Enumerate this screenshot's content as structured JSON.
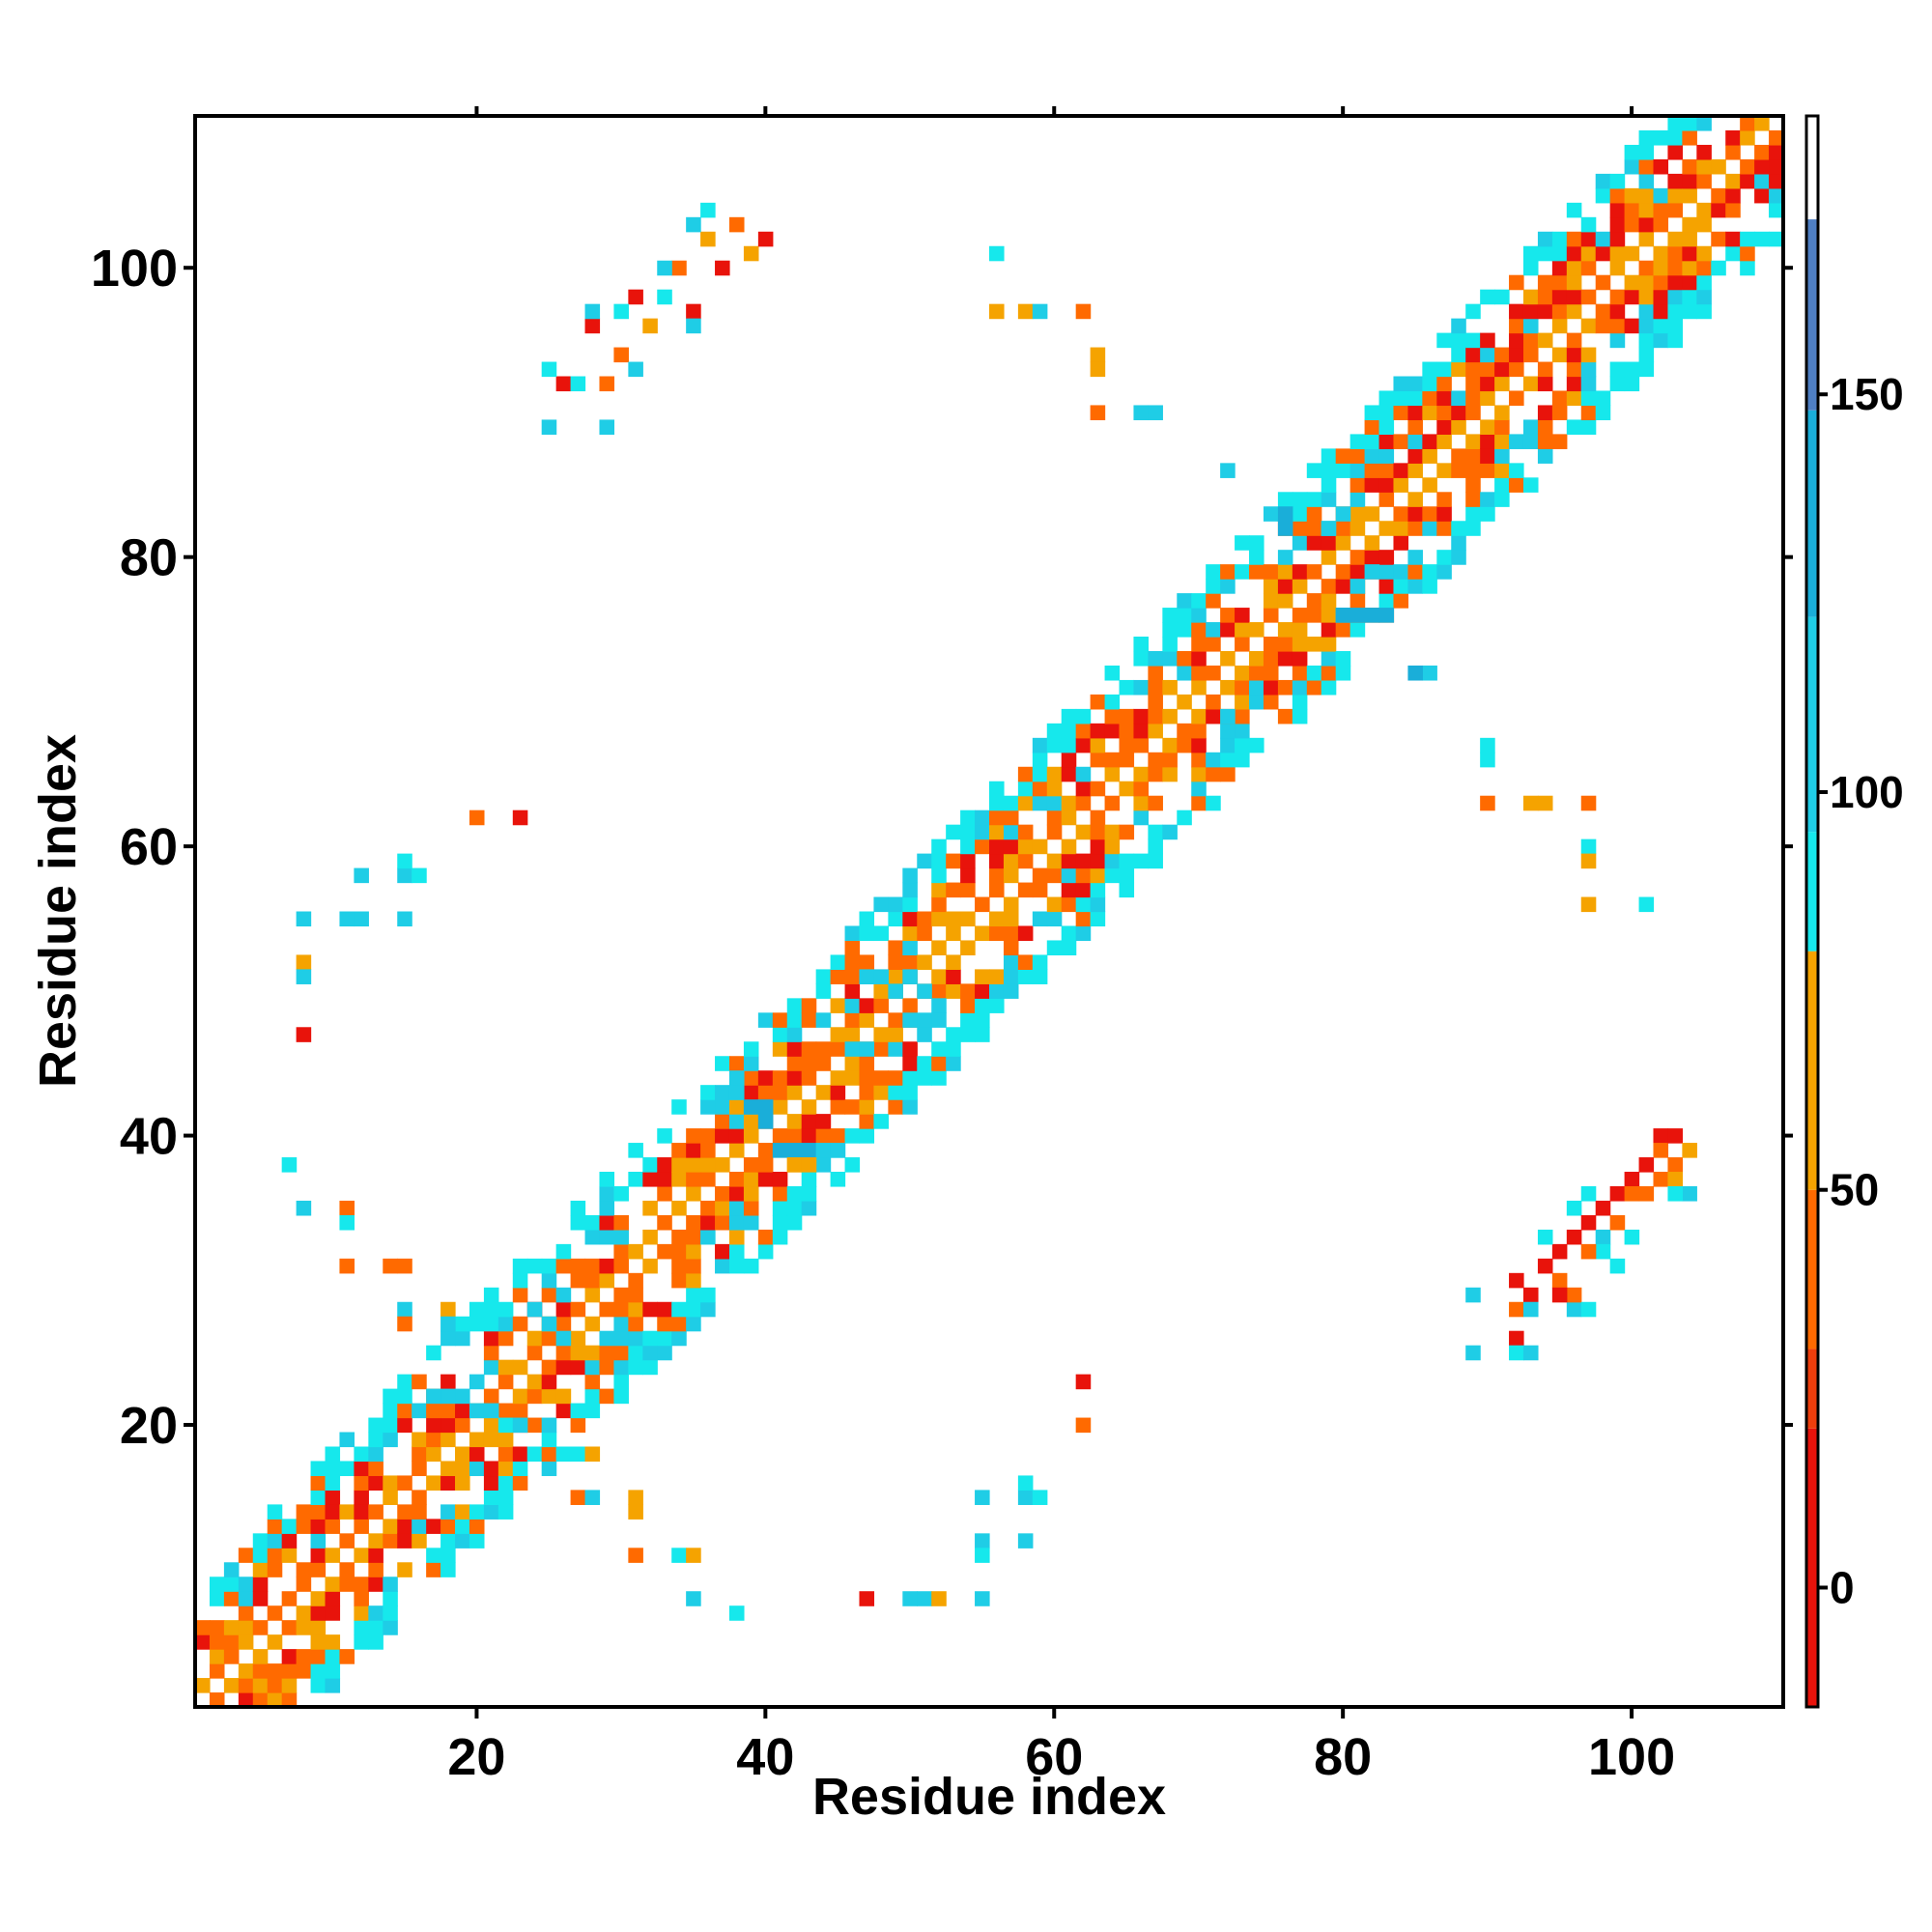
{
  "chart_data": {
    "type": "heatmap",
    "title": "",
    "xlabel": "Residue index",
    "ylabel": "Residue index",
    "xlim": [
      1,
      110
    ],
    "ylim": [
      1,
      110
    ],
    "xticks": [
      20,
      40,
      60,
      80,
      100
    ],
    "yticks": [
      20,
      40,
      60,
      80,
      100
    ],
    "grid": false,
    "colorbar": {
      "range": [
        -15,
        185
      ],
      "ticks": [
        0,
        50,
        100,
        150
      ],
      "bands": [
        {
          "from": -15,
          "to": 20,
          "color": "#e8130b"
        },
        {
          "from": 20,
          "to": 30,
          "color": "#ef3e0c"
        },
        {
          "from": 30,
          "to": 50,
          "color": "#ff6a00"
        },
        {
          "from": 50,
          "to": 80,
          "color": "#f5a300"
        },
        {
          "from": 80,
          "to": 95,
          "color": "#16e8ec"
        },
        {
          "from": 95,
          "to": 122,
          "color": "#1fcde6"
        },
        {
          "from": 122,
          "to": 148,
          "color": "#1aaed9"
        },
        {
          "from": 148,
          "to": 172,
          "color": "#4f7fc4"
        },
        {
          "from": 172,
          "to": 185,
          "color": "#ffffff"
        }
      ]
    },
    "palette": {
      "red": "#e8130b",
      "orange": "#ff6a00",
      "amber": "#f5a300",
      "cyan": "#16e8ec",
      "sky": "#1fcde6",
      "blue": "#1aaed9"
    },
    "description_encoding": "cells [x, y, value]; value in colorbar units",
    "band_main": {
      "x_range": [
        1,
        110
      ],
      "half_width": 8
    },
    "contacts": [
      [
        26,
        92,
        10
      ],
      [
        28,
        96,
        10
      ],
      [
        29,
        92,
        40
      ],
      [
        30,
        94,
        40
      ],
      [
        31,
        98,
        10
      ],
      [
        32,
        96,
        60
      ],
      [
        33,
        98,
        90
      ],
      [
        34,
        100,
        40
      ],
      [
        35,
        97,
        10
      ],
      [
        36,
        102,
        60
      ],
      [
        37,
        100,
        10
      ],
      [
        38,
        103,
        40
      ],
      [
        39,
        101,
        60
      ],
      [
        40,
        102,
        10
      ],
      [
        25,
        93,
        90
      ],
      [
        25,
        89,
        100
      ],
      [
        29,
        89,
        100
      ],
      [
        27,
        92,
        90
      ],
      [
        28,
        97,
        100
      ],
      [
        33,
        100,
        100
      ],
      [
        35,
        103,
        100
      ],
      [
        36,
        104,
        90
      ],
      [
        35,
        96,
        100
      ],
      [
        31,
        93,
        100
      ],
      [
        30,
        97,
        90
      ],
      [
        56,
        101,
        90
      ],
      [
        56,
        97,
        50
      ],
      [
        58,
        97,
        50
      ],
      [
        59,
        97,
        100
      ],
      [
        62,
        97,
        40
      ],
      [
        63,
        94,
        50
      ],
      [
        63,
        93,
        50
      ],
      [
        63,
        90,
        40
      ],
      [
        66,
        90,
        100
      ],
      [
        67,
        90,
        100
      ],
      [
        72,
        86,
        100
      ],
      [
        8,
        55,
        100
      ],
      [
        11,
        55,
        100
      ],
      [
        12,
        55,
        100
      ],
      [
        12,
        58,
        100
      ],
      [
        15,
        55,
        100
      ],
      [
        15,
        58,
        100
      ],
      [
        15,
        59,
        90
      ],
      [
        16,
        58,
        90
      ],
      [
        8,
        52,
        50
      ],
      [
        8,
        51,
        100
      ],
      [
        8,
        47,
        10
      ],
      [
        20,
        62,
        40
      ],
      [
        23,
        62,
        10
      ],
      [
        7,
        38,
        90
      ],
      [
        8,
        35,
        100
      ],
      [
        11,
        35,
        40
      ],
      [
        11,
        34,
        90
      ],
      [
        11,
        31,
        40
      ],
      [
        14,
        31,
        40
      ],
      [
        15,
        31,
        40
      ],
      [
        15,
        28,
        100
      ],
      [
        15,
        27,
        40
      ],
      [
        18,
        28,
        50
      ],
      [
        18,
        27,
        100
      ],
      [
        27,
        18,
        90
      ],
      [
        28,
        18,
        50
      ],
      [
        27,
        15,
        40
      ],
      [
        28,
        15,
        100
      ],
      [
        31,
        15,
        50
      ],
      [
        31,
        14,
        50
      ],
      [
        31,
        11,
        40
      ],
      [
        34,
        11,
        90
      ],
      [
        35,
        11,
        50
      ],
      [
        35,
        8,
        100
      ],
      [
        38,
        7,
        90
      ],
      [
        47,
        8,
        10
      ],
      [
        50,
        8,
        100
      ],
      [
        51,
        8,
        100
      ],
      [
        52,
        8,
        50
      ],
      [
        55,
        8,
        100
      ],
      [
        55,
        12,
        100
      ],
      [
        55,
        11,
        90
      ],
      [
        55,
        15,
        100
      ],
      [
        58,
        15,
        100
      ],
      [
        58,
        16,
        90
      ],
      [
        59,
        15,
        90
      ],
      [
        58,
        12,
        100
      ],
      [
        62,
        23,
        10
      ],
      [
        62,
        20,
        40
      ],
      [
        86,
        72,
        100
      ],
      [
        90,
        67,
        90
      ],
      [
        90,
        66,
        90
      ],
      [
        90,
        63,
        40
      ],
      [
        93,
        63,
        50
      ],
      [
        94,
        63,
        50
      ],
      [
        97,
        63,
        40
      ],
      [
        97,
        60,
        90
      ],
      [
        97,
        59,
        50
      ],
      [
        97,
        56,
        50
      ],
      [
        101,
        56,
        90
      ],
      [
        89,
        29,
        100
      ],
      [
        89,
        25,
        100
      ],
      [
        92,
        26,
        10
      ],
      [
        92,
        25,
        90
      ],
      [
        93,
        25,
        100
      ],
      [
        92,
        28,
        40
      ],
      [
        92,
        30,
        10
      ],
      [
        93,
        29,
        10
      ],
      [
        93,
        28,
        100
      ],
      [
        94,
        31,
        10
      ],
      [
        95,
        32,
        10
      ],
      [
        95,
        30,
        40
      ],
      [
        96,
        28,
        100
      ],
      [
        96,
        29,
        40
      ],
      [
        96,
        33,
        10
      ],
      [
        96,
        35,
        90
      ],
      [
        97,
        34,
        10
      ],
      [
        97,
        36,
        90
      ],
      [
        98,
        35,
        10
      ],
      [
        98,
        33,
        100
      ],
      [
        98,
        32,
        90
      ],
      [
        99,
        36,
        10
      ],
      [
        99,
        34,
        40
      ],
      [
        100,
        37,
        10
      ],
      [
        100,
        36,
        40
      ],
      [
        100,
        33,
        90
      ],
      [
        101,
        38,
        10
      ],
      [
        101,
        36,
        40
      ],
      [
        102,
        37,
        40
      ],
      [
        102,
        40,
        10
      ],
      [
        102,
        39,
        40
      ],
      [
        103,
        38,
        40
      ],
      [
        103,
        40,
        10
      ],
      [
        103,
        37,
        50
      ],
      [
        104,
        39,
        50
      ],
      [
        104,
        36,
        100
      ],
      [
        103,
        36,
        90
      ],
      [
        94,
        33,
        90
      ],
      [
        97,
        32,
        40
      ],
      [
        99,
        31,
        90
      ],
      [
        97,
        28,
        90
      ],
      [
        95,
        29,
        10
      ],
      [
        76,
        83,
        140
      ],
      [
        76,
        82,
        140
      ],
      [
        80,
        83,
        100
      ],
      [
        79,
        82,
        100
      ],
      [
        80,
        76,
        140
      ],
      [
        81,
        76,
        140
      ],
      [
        82,
        76,
        140
      ],
      [
        83,
        76,
        140
      ],
      [
        85,
        72,
        140
      ],
      [
        82,
        79,
        100
      ],
      [
        81,
        78,
        100
      ],
      [
        72,
        69,
        100
      ],
      [
        38,
        44,
        100
      ],
      [
        38,
        43,
        100
      ],
      [
        39,
        42,
        140
      ],
      [
        40,
        42,
        140
      ],
      [
        40,
        41,
        140
      ],
      [
        41,
        39,
        140
      ],
      [
        42,
        39,
        140
      ],
      [
        43,
        39,
        140
      ],
      [
        44,
        39,
        100
      ],
      [
        45,
        39,
        100
      ],
      [
        42,
        38,
        50
      ],
      [
        43,
        38,
        50
      ],
      [
        47,
        51,
        100
      ],
      [
        48,
        51,
        100
      ],
      [
        49,
        50,
        100
      ],
      [
        50,
        48,
        100
      ],
      [
        51,
        48,
        100
      ],
      [
        51,
        47,
        100
      ],
      [
        52,
        49,
        100
      ],
      [
        51,
        50,
        100
      ],
      [
        50,
        51,
        100
      ],
      [
        46,
        46,
        100
      ],
      [
        47,
        46,
        100
      ],
      [
        20,
        21,
        100
      ],
      [
        21,
        21,
        100
      ],
      [
        22,
        20,
        90
      ],
      [
        23,
        20,
        100
      ],
      [
        17,
        22,
        100
      ],
      [
        18,
        22,
        100
      ],
      [
        24,
        28,
        100
      ],
      [
        25,
        27,
        100
      ],
      [
        26,
        26,
        100
      ]
    ]
  }
}
